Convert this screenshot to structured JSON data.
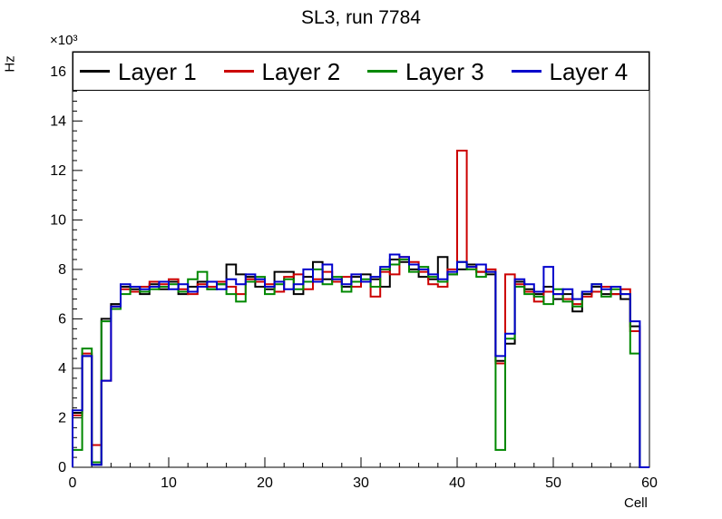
{
  "title": "SL3, run 7784",
  "axes": {
    "ylabel": "Hz",
    "y_multiplier": "×10³",
    "xlabel": "Cell"
  },
  "chart_data": {
    "type": "line",
    "style": "step-histogram",
    "title": "SL3, run 7784",
    "xlabel": "Cell",
    "ylabel": "Hz",
    "y_unit_multiplier": "×10³",
    "grid": false,
    "legend_position": "top-inside-frame",
    "xlim": [
      0,
      60
    ],
    "ylim": [
      0,
      16.8
    ],
    "x_major_tick_step": 10,
    "x_minor_tick_step": 2,
    "y_major_tick_step": 2,
    "y_minor_tick_step": 0.4,
    "bin_width": 1,
    "series": [
      {
        "name": "Layer 1",
        "color": "#000000",
        "values": [
          2.2,
          4.5,
          0.1,
          6.0,
          6.6,
          7.3,
          7.2,
          7.0,
          7.4,
          7.2,
          7.5,
          7.0,
          7.3,
          7.5,
          7.2,
          7.4,
          8.2,
          7.8,
          7.7,
          7.3,
          7.2,
          7.9,
          7.9,
          7.0,
          7.7,
          8.3,
          7.6,
          7.5,
          7.3,
          7.7,
          7.8,
          7.6,
          7.3,
          8.4,
          8.3,
          8.0,
          7.7,
          7.6,
          8.5,
          7.8,
          8.0,
          8.2,
          7.9,
          7.8,
          4.3,
          5.0,
          7.5,
          7.2,
          7.0,
          7.3,
          6.8,
          7.0,
          6.3,
          7.0,
          7.3,
          7.0,
          7.0,
          6.8,
          5.7,
          0
        ]
      },
      {
        "name": "Layer 2",
        "color": "#cc0000",
        "values": [
          2.1,
          4.6,
          0.9,
          3.5,
          6.5,
          7.2,
          7.1,
          7.3,
          7.5,
          7.4,
          7.6,
          7.2,
          7.0,
          7.4,
          7.3,
          7.5,
          7.3,
          7.0,
          7.6,
          7.5,
          7.4,
          7.1,
          7.7,
          7.8,
          7.2,
          7.6,
          7.9,
          7.5,
          7.7,
          7.3,
          7.5,
          6.9,
          7.9,
          7.8,
          8.5,
          8.3,
          7.9,
          7.4,
          7.3,
          8.0,
          12.8,
          8.1,
          7.9,
          8.0,
          4.2,
          7.8,
          7.4,
          7.1,
          6.7,
          7.1,
          7.0,
          6.8,
          6.6,
          6.9,
          7.1,
          7.3,
          7.0,
          7.2,
          5.5,
          0
        ]
      },
      {
        "name": "Layer 3",
        "color": "#008800",
        "values": [
          0.7,
          4.8,
          0.2,
          5.9,
          6.4,
          7.0,
          7.3,
          7.1,
          7.2,
          7.3,
          7.4,
          7.1,
          7.6,
          7.9,
          7.2,
          7.4,
          7.0,
          6.7,
          7.5,
          7.7,
          7.0,
          7.4,
          7.6,
          7.2,
          7.5,
          8.0,
          7.4,
          7.7,
          7.1,
          7.5,
          7.6,
          7.3,
          8.0,
          8.2,
          8.4,
          7.9,
          8.1,
          7.7,
          7.5,
          7.8,
          8.3,
          8.0,
          7.7,
          7.9,
          0.7,
          5.2,
          7.3,
          7.0,
          6.9,
          6.6,
          7.2,
          6.7,
          6.5,
          7.1,
          7.4,
          6.9,
          7.2,
          7.0,
          4.6,
          0
        ]
      },
      {
        "name": "Layer 4",
        "color": "#0000cc",
        "values": [
          2.3,
          4.5,
          0.1,
          3.5,
          6.5,
          7.4,
          7.3,
          7.2,
          7.3,
          7.5,
          7.2,
          7.4,
          7.1,
          7.3,
          7.5,
          7.2,
          7.6,
          7.4,
          7.8,
          7.6,
          7.3,
          7.5,
          7.2,
          7.4,
          8.0,
          7.5,
          8.2,
          7.6,
          7.4,
          7.8,
          7.5,
          7.7,
          8.1,
          8.6,
          8.5,
          8.2,
          8.0,
          7.8,
          7.6,
          7.9,
          8.3,
          8.1,
          8.2,
          7.9,
          4.5,
          5.4,
          7.6,
          7.4,
          7.1,
          8.1,
          7.0,
          7.2,
          6.8,
          7.1,
          7.4,
          7.2,
          7.3,
          7.0,
          5.9,
          0
        ]
      }
    ]
  }
}
